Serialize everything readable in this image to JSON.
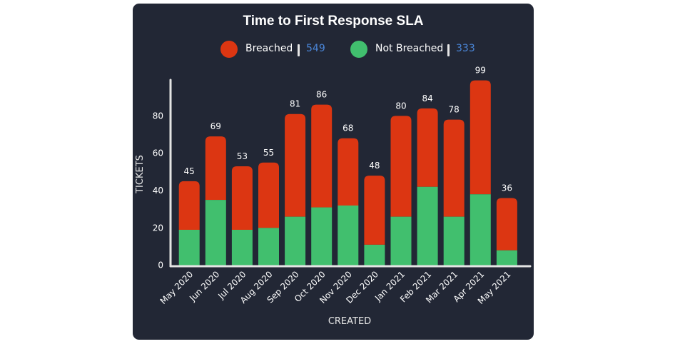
{
  "chart_data": {
    "type": "bar",
    "stacked": true,
    "title": "Time to First Response SLA",
    "xlabel": "CREATED",
    "ylabel": "TICKETS",
    "ylim": [
      0,
      100
    ],
    "yticks": [
      0,
      20,
      40,
      60,
      80
    ],
    "grid": false,
    "legend_position": "top-center",
    "categories": [
      "May 2020",
      "Jun 2020",
      "Jul 2020",
      "Aug 2020",
      "Sep 2020",
      "Oct 2020",
      "Nov 2020",
      "Dec 2020",
      "Jan 2021",
      "Feb 2021",
      "Mar 2021",
      "Apr 2021",
      "May 2021"
    ],
    "totals": [
      45,
      69,
      53,
      55,
      81,
      86,
      68,
      48,
      80,
      84,
      78,
      99,
      36
    ],
    "series": [
      {
        "name": "Not Breached",
        "color": "#41bf6e",
        "values": [
          19,
          35,
          19,
          20,
          26,
          31,
          32,
          11,
          26,
          42,
          26,
          38,
          8
        ]
      },
      {
        "name": "Breached",
        "color": "#dc3612",
        "values": [
          26,
          34,
          34,
          35,
          55,
          55,
          36,
          37,
          54,
          42,
          52,
          61,
          28
        ]
      }
    ]
  },
  "legend": [
    {
      "label": "Breached",
      "count": "549",
      "color": "#dc3612"
    },
    {
      "label": "Not Breached",
      "count": "333",
      "color": "#41bf6e"
    }
  ]
}
